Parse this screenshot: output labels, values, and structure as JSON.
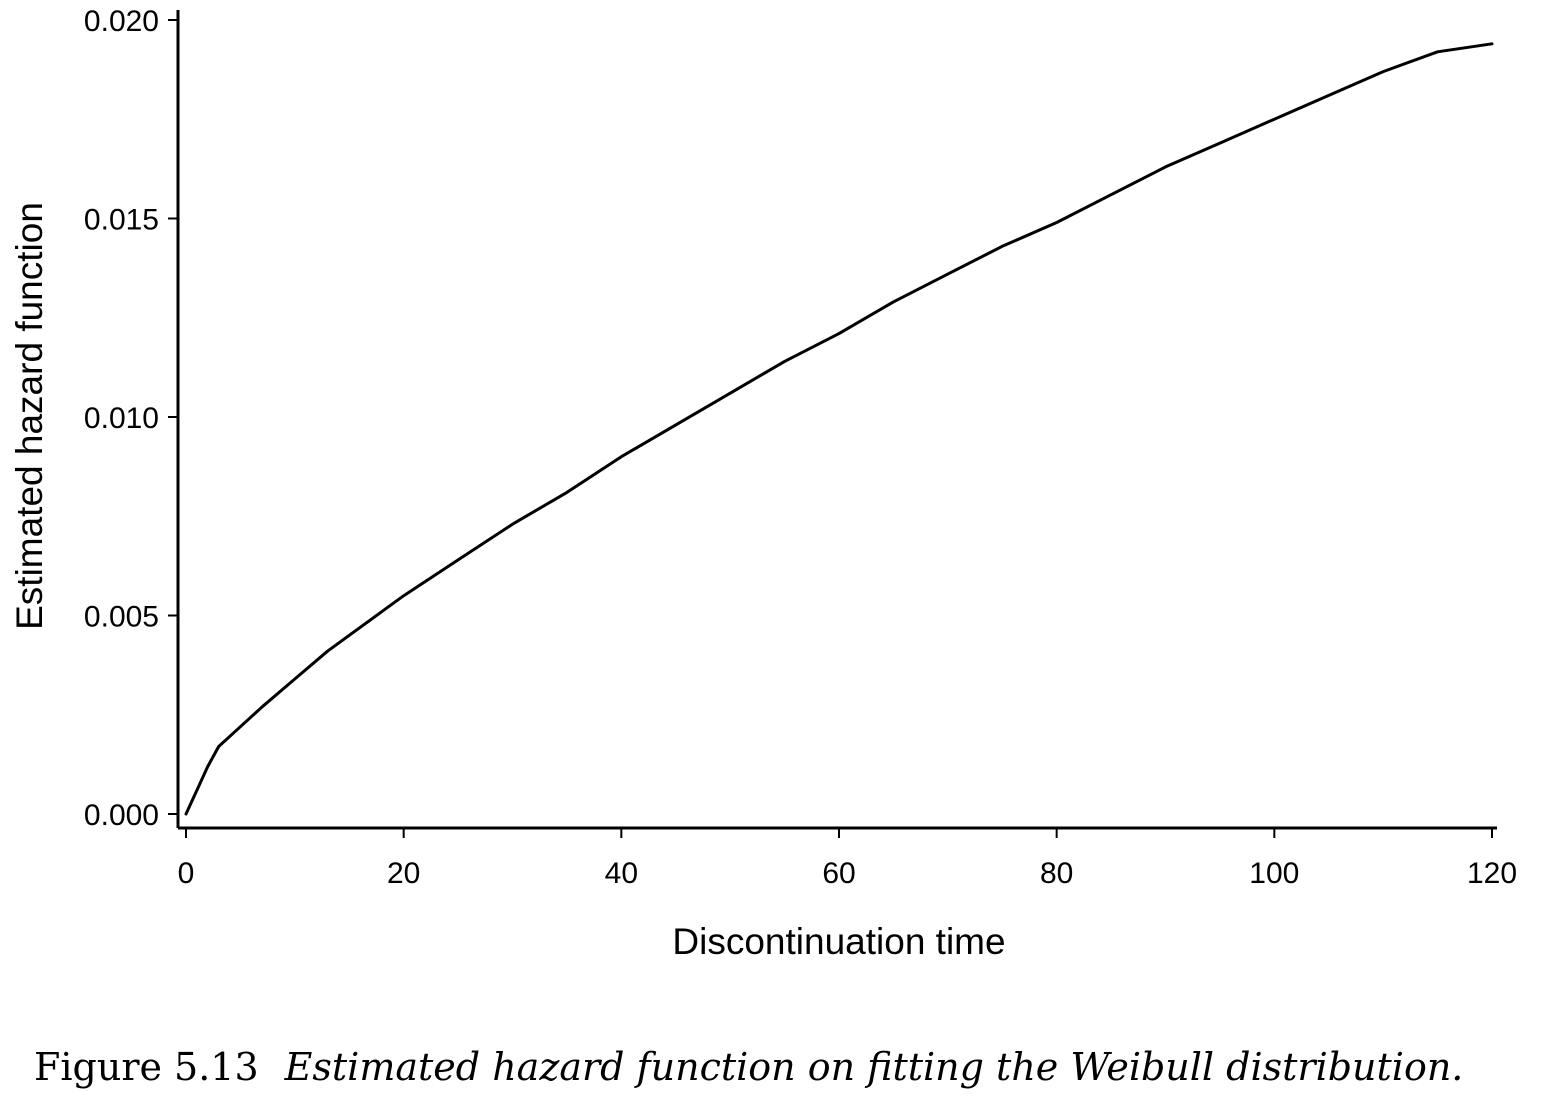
{
  "chart_data": {
    "type": "line",
    "xlabel": "Discontinuation time",
    "ylabel": "Estimated hazard function",
    "xlim": [
      0,
      120
    ],
    "ylim": [
      0,
      0.02
    ],
    "x_ticks": [
      "0",
      "20",
      "40",
      "60",
      "80",
      "100",
      "120"
    ],
    "y_ticks": [
      "0.000",
      "0.005",
      "0.010",
      "0.015",
      "0.020"
    ],
    "grid": false,
    "series": [
      {
        "x": [
          0,
          1,
          2,
          3,
          5,
          7,
          10,
          13,
          16,
          20,
          25,
          30,
          35,
          40,
          45,
          50,
          55,
          60,
          65,
          70,
          75,
          80,
          85,
          90,
          95,
          100,
          105,
          110,
          115,
          120
        ],
        "y": [
          0.0,
          0.0006,
          0.0012,
          0.0017,
          0.0022,
          0.0027,
          0.0034,
          0.0041,
          0.0047,
          0.0055,
          0.0064,
          0.0073,
          0.0081,
          0.009,
          0.0098,
          0.0106,
          0.0114,
          0.0121,
          0.0129,
          0.0136,
          0.0143,
          0.0149,
          0.0156,
          0.0163,
          0.0169,
          0.0175,
          0.0181,
          0.0187,
          0.0192,
          0.0194
        ]
      }
    ],
    "line_color": "#000000"
  },
  "caption": {
    "label": "Figure 5.13",
    "text": "Estimated hazard function on fitting the Weibull distribution."
  }
}
